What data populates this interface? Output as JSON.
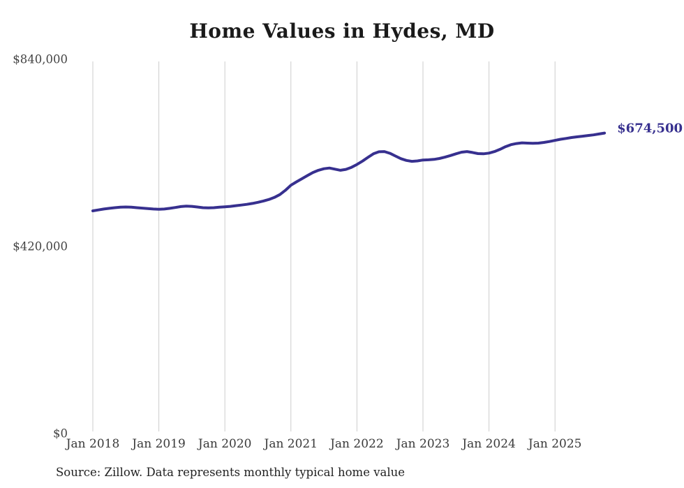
{
  "page": {
    "background": "#ffffff"
  },
  "footer": {
    "text": "Source: Zillow. Data represents monthly typical home value"
  },
  "chart_data": {
    "type": "line",
    "title": "Home Values in Hydes, MD",
    "xlabel": "",
    "ylabel": "",
    "ylim": [
      0,
      840000
    ],
    "grid": "vertical-only",
    "legend": "none",
    "end_label": "$674,500",
    "y_ticks": [
      {
        "label": "$840,000",
        "value": 840000
      },
      {
        "label": "$420,000",
        "value": 420000
      },
      {
        "label": "$0",
        "value": 0
      }
    ],
    "x_tick_labels": [
      "Jan 2018",
      "Jan 2019",
      "Jan 2020",
      "Jan 2021",
      "Jan 2022",
      "Jan 2023",
      "Jan 2024",
      "Jan 2025"
    ],
    "series": [
      {
        "name": "Monthly typical home value",
        "start": "Jan 2018",
        "frequency": "monthly",
        "values": [
          500000,
          502000,
          504000,
          505500,
          507000,
          508000,
          508500,
          508000,
          507000,
          506000,
          505000,
          504000,
          503500,
          504000,
          505500,
          507500,
          509500,
          510500,
          510000,
          508500,
          507000,
          506500,
          507000,
          508000,
          509000,
          510000,
          511500,
          513000,
          514500,
          516500,
          519000,
          522000,
          525500,
          530000,
          536500,
          546000,
          557500,
          565000,
          572000,
          579000,
          586000,
          591000,
          594500,
          596000,
          593500,
          591000,
          593000,
          597500,
          604000,
          611500,
          620000,
          628000,
          632500,
          633000,
          629000,
          623000,
          617000,
          613000,
          611000,
          612000,
          614000,
          614500,
          615500,
          617500,
          620500,
          624000,
          628000,
          631500,
          633000,
          631000,
          628500,
          628000,
          629500,
          633000,
          638000,
          644000,
          648500,
          651000,
          652500,
          652000,
          651500,
          652000,
          653500,
          655500,
          658000,
          660500,
          662500,
          664500,
          666000,
          667500,
          669000,
          670500,
          672500,
          674500
        ]
      }
    ],
    "colors": {
      "line": "#37308f",
      "end_label": "#37308f",
      "grid": "#cccccc",
      "tick_label": "#444444",
      "title": "#1a1a1a",
      "footer": "#222222"
    }
  }
}
